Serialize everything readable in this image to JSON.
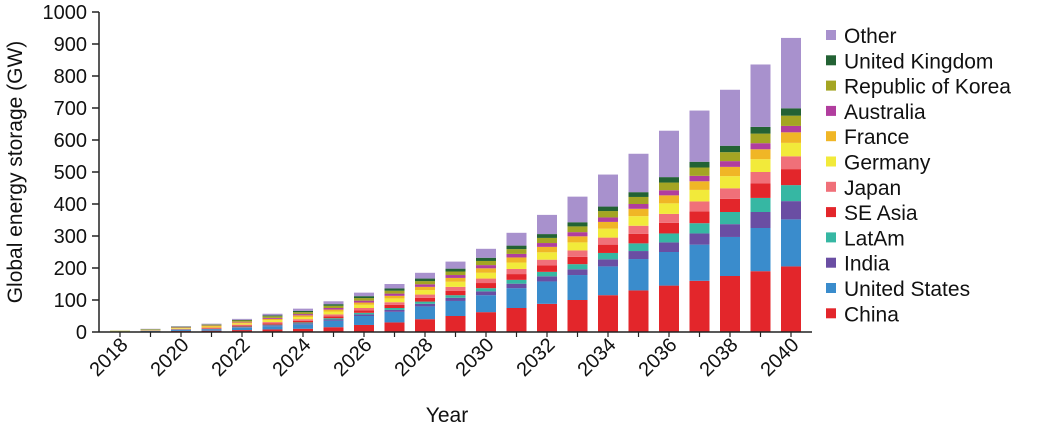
{
  "chart_data": {
    "type": "bar",
    "stacked": true,
    "title": "",
    "xlabel": "Year",
    "ylabel": "Global energy storage (GW)",
    "ylim": [
      0,
      1000
    ],
    "yticks": [
      "0",
      "100",
      "200",
      "300",
      "400",
      "500",
      "600",
      "700",
      "800",
      "900",
      "1000"
    ],
    "xtick_labels": [
      "2018",
      "2020",
      "2022",
      "2024",
      "2026",
      "2028",
      "2030",
      "2032",
      "2034",
      "2036",
      "2038",
      "2040"
    ],
    "categories": [
      "2018",
      "2019",
      "2020",
      "2021",
      "2022",
      "2023",
      "2024",
      "2025",
      "2026",
      "2027",
      "2028",
      "2029",
      "2030",
      "2031",
      "2032",
      "2033",
      "2034",
      "2035",
      "2036",
      "2037",
      "2038",
      "2039",
      "2040"
    ],
    "legend_position": "right",
    "series": [
      {
        "name": "China",
        "color": "#e3262b",
        "values": [
          1,
          2,
          3,
          4,
          6,
          8,
          10,
          15,
          22,
          30,
          40,
          50,
          62,
          75,
          88,
          100,
          115,
          130,
          145,
          160,
          175,
          190,
          205
        ]
      },
      {
        "name": "United States",
        "color": "#3a8ccc",
        "values": [
          1,
          2,
          3,
          4,
          7,
          10,
          14,
          20,
          28,
          33,
          40,
          47,
          53,
          62,
          70,
          78,
          90,
          98,
          105,
          113,
          122,
          135,
          147
        ]
      },
      {
        "name": "India",
        "color": "#6a4ea3",
        "values": [
          0,
          0,
          1,
          1,
          2,
          3,
          3,
          4,
          5,
          6,
          8,
          10,
          12,
          14,
          16,
          18,
          22,
          25,
          30,
          35,
          40,
          50,
          57
        ]
      },
      {
        "name": "LatAm",
        "color": "#36b7a3",
        "values": [
          0,
          0,
          1,
          1,
          2,
          2,
          3,
          4,
          5,
          6,
          7,
          8,
          10,
          12,
          14,
          16,
          20,
          24,
          28,
          32,
          38,
          44,
          50
        ]
      },
      {
        "name": "SE Asia",
        "color": "#e3262b",
        "values": [
          0,
          0,
          1,
          2,
          3,
          4,
          5,
          6,
          8,
          10,
          12,
          14,
          16,
          18,
          20,
          23,
          26,
          30,
          33,
          37,
          41,
          45,
          50
        ]
      },
      {
        "name": "Japan",
        "color": "#f07079",
        "values": [
          0,
          1,
          1,
          2,
          3,
          4,
          5,
          6,
          7,
          8,
          10,
          12,
          14,
          16,
          18,
          20,
          22,
          25,
          28,
          31,
          33,
          36,
          40
        ]
      },
      {
        "name": "Germany",
        "color": "#f2ea3a",
        "values": [
          1,
          1,
          2,
          3,
          4,
          6,
          7,
          9,
          10,
          12,
          14,
          16,
          18,
          20,
          23,
          25,
          28,
          30,
          33,
          36,
          38,
          40,
          42
        ]
      },
      {
        "name": "France",
        "color": "#f0b626",
        "values": [
          0,
          1,
          1,
          2,
          3,
          4,
          5,
          6,
          7,
          8,
          10,
          12,
          14,
          16,
          17,
          19,
          21,
          23,
          25,
          27,
          29,
          31,
          33
        ]
      },
      {
        "name": "Australia",
        "color": "#b13d9e",
        "values": [
          0,
          0,
          1,
          1,
          2,
          3,
          4,
          5,
          6,
          7,
          8,
          9,
          10,
          11,
          12,
          13,
          14,
          15,
          16,
          17,
          18,
          19,
          20
        ]
      },
      {
        "name": "Republic of Korea",
        "color": "#a4a523",
        "values": [
          1,
          1,
          2,
          3,
          4,
          5,
          6,
          7,
          8,
          9,
          10,
          11,
          13,
          15,
          16,
          18,
          20,
          22,
          24,
          26,
          28,
          30,
          32
        ]
      },
      {
        "name": "United Kingdom",
        "color": "#236234",
        "values": [
          0,
          1,
          1,
          1,
          2,
          3,
          4,
          5,
          6,
          7,
          8,
          9,
          10,
          11,
          12,
          13,
          14,
          15,
          17,
          18,
          20,
          21,
          23
        ]
      },
      {
        "name": "Other",
        "color": "#a891cd",
        "values": [
          0,
          1,
          1,
          2,
          3,
          5,
          7,
          9,
          11,
          14,
          18,
          22,
          28,
          40,
          60,
          80,
          100,
          120,
          145,
          160,
          175,
          195,
          220
        ]
      }
    ]
  }
}
